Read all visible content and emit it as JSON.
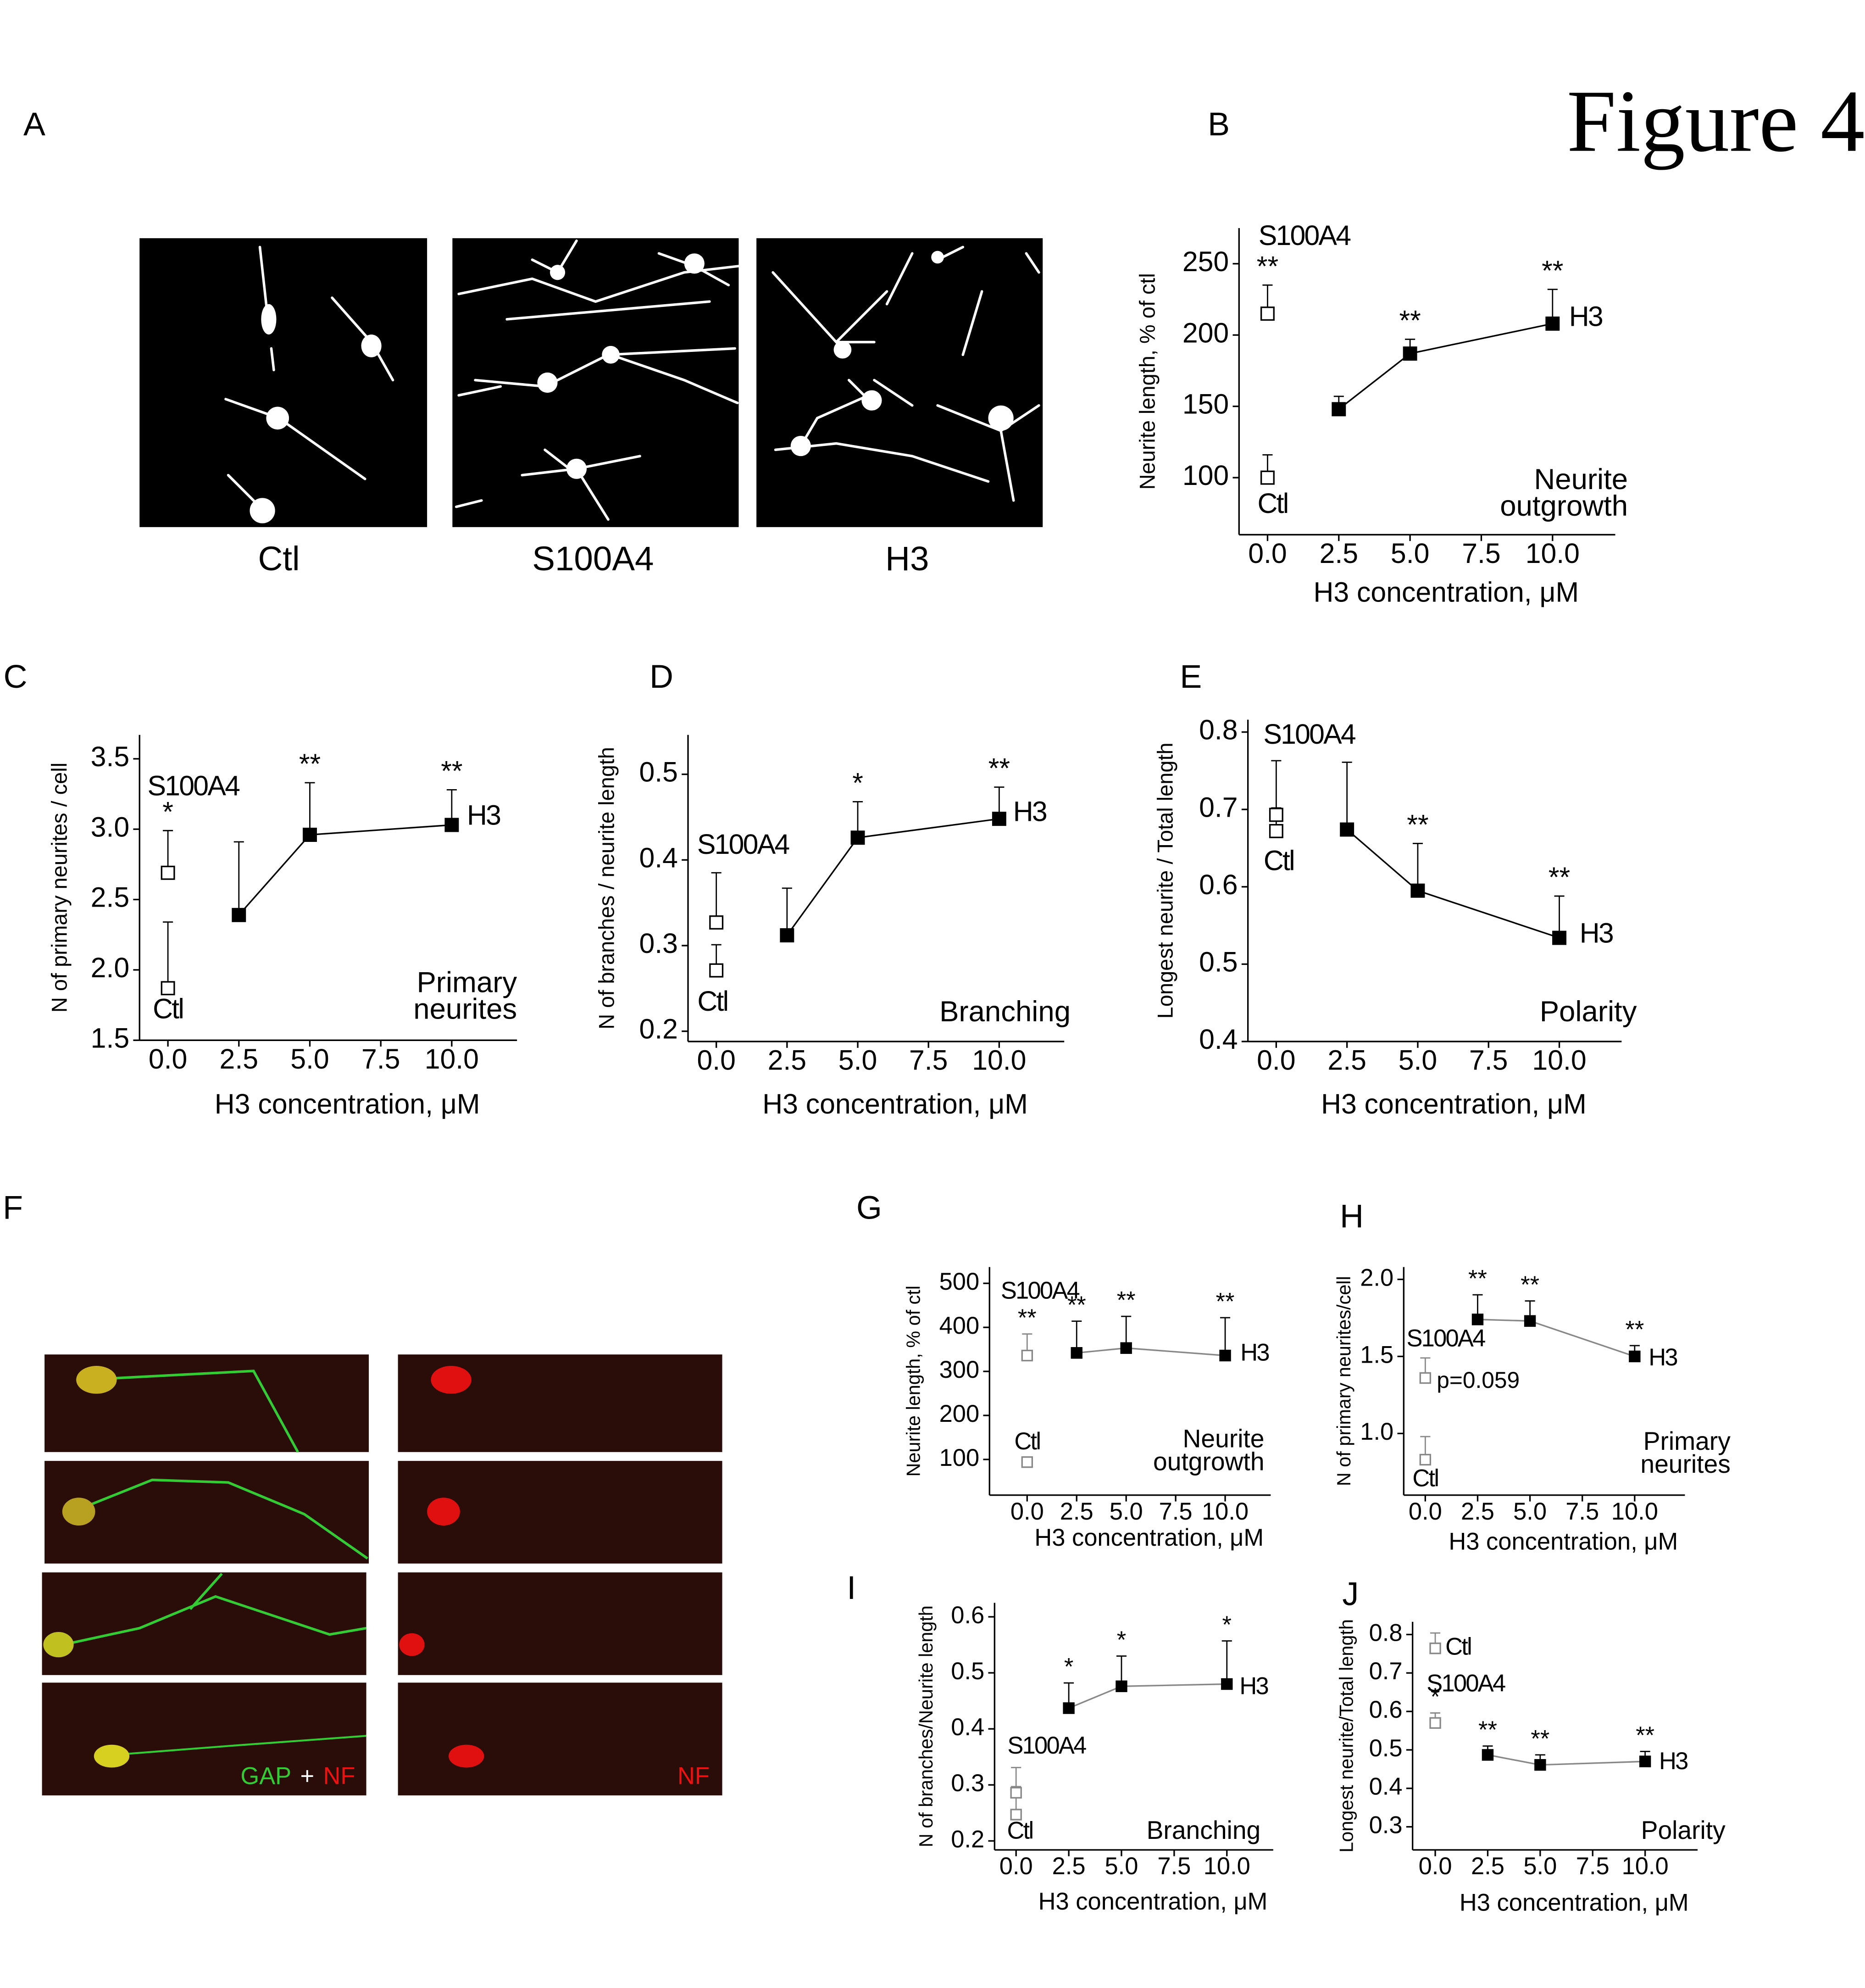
{
  "figure_title": "Figure 4",
  "panels": {
    "A": {
      "label": "A",
      "captions": [
        "Ctl",
        "S100A4",
        "H3"
      ]
    },
    "F": {
      "label": "F",
      "merge_label": [
        "GAP",
        "+",
        "NF"
      ],
      "single_label": "NF"
    }
  },
  "chart_data": [
    {
      "type": "line",
      "panel": "B",
      "ylabel": "Neurite length, % of ctl",
      "xlabel": "H3 concentration, μM",
      "annotation": [
        "Neurite",
        "outgrowth"
      ],
      "xlim": [
        -1,
        12.2
      ],
      "xticks": [
        {
          "value": 0,
          "label": "0.0"
        },
        2.5,
        {
          "value": 5,
          "label": "5.0"
        },
        7.5,
        {
          "value": 10,
          "label": "10.0"
        }
      ],
      "ylim": [
        60,
        275
      ],
      "yticks": [
        100,
        150,
        200,
        250
      ],
      "series": [
        {
          "name": "Ctl",
          "marker": "open",
          "color": "#000000",
          "x": [
            0
          ],
          "values": [
            100
          ],
          "errors": [
            16
          ],
          "significance": [
            null
          ]
        },
        {
          "name": "S100A4",
          "marker": "open",
          "color": "#000000",
          "x": [
            0
          ],
          "values": [
            215
          ],
          "errors": [
            20
          ],
          "significance": [
            "**"
          ]
        },
        {
          "name": "H3",
          "marker": "filled",
          "color": "#000000",
          "line_color": "#000000",
          "x": [
            2.5,
            5,
            10
          ],
          "values": [
            148,
            187,
            208
          ],
          "errors": [
            9,
            10,
            24
          ],
          "significance": [
            null,
            "**",
            "**"
          ]
        }
      ]
    },
    {
      "type": "line",
      "panel": "C",
      "ylabel": "N of primary neurites / cell",
      "xlabel": "H3 concentration, μM",
      "annotation": [
        "Primary",
        "neurites"
      ],
      "xlim": [
        -1,
        12.3
      ],
      "xticks": [
        {
          "value": 0,
          "label": "0.0"
        },
        2.5,
        {
          "value": 5,
          "label": "5.0"
        },
        7.5,
        {
          "value": 10,
          "label": "10.0"
        }
      ],
      "ylim": [
        1.5,
        3.67
      ],
      "yticks": [
        1.5,
        {
          "value": 2,
          "label": "2.0"
        },
        2.5,
        {
          "value": 3,
          "label": "3.0"
        },
        3.5
      ],
      "series": [
        {
          "name": "Ctl",
          "marker": "open",
          "color": "#000000",
          "x": [
            0
          ],
          "values": [
            1.87
          ],
          "errors": [
            0.47
          ],
          "significance": [
            null
          ]
        },
        {
          "name": "S100A4",
          "marker": "open",
          "color": "#000000",
          "x": [
            0
          ],
          "values": [
            2.69
          ],
          "errors": [
            0.3
          ],
          "significance": [
            "*"
          ]
        },
        {
          "name": "H3",
          "marker": "filled",
          "color": "#000000",
          "line_color": "#000000",
          "x": [
            2.5,
            5,
            10
          ],
          "values": [
            2.39,
            2.96,
            3.03
          ],
          "errors": [
            0.52,
            0.37,
            0.25
          ],
          "significance": [
            null,
            "**",
            "**"
          ]
        }
      ]
    },
    {
      "type": "line",
      "panel": "D",
      "ylabel": "N of branches / neurite length",
      "xlabel": "H3 concentration, μM",
      "annotation": [
        "Branching"
      ],
      "xlim": [
        -1,
        12.3
      ],
      "xticks": [
        {
          "value": 0,
          "label": "0.0"
        },
        2.5,
        {
          "value": 5,
          "label": "5.0"
        },
        7.5,
        {
          "value": 10,
          "label": "10.0"
        }
      ],
      "ylim": [
        0.188,
        0.546
      ],
      "yticks": [
        0.2,
        0.3,
        0.4,
        0.5
      ],
      "series": [
        {
          "name": "Ctl",
          "marker": "open",
          "color": "#000000",
          "x": [
            0
          ],
          "values": [
            0.271
          ],
          "errors": [
            0.03
          ],
          "significance": [
            null
          ]
        },
        {
          "name": "S100A4",
          "marker": "open",
          "color": "#000000",
          "x": [
            0
          ],
          "values": [
            0.327
          ],
          "errors": [
            0.058
          ],
          "significance": [
            null
          ]
        },
        {
          "name": "H3",
          "marker": "filled",
          "color": "#000000",
          "line_color": "#000000",
          "x": [
            2.5,
            5,
            10
          ],
          "values": [
            0.312,
            0.426,
            0.448
          ],
          "errors": [
            0.055,
            0.042,
            0.037
          ],
          "significance": [
            null,
            "*",
            "**"
          ]
        }
      ]
    },
    {
      "type": "line",
      "panel": "E",
      "ylabel": "Longest neurite / Total length",
      "xlabel": "H3 concentration, μM",
      "annotation": [
        "Polarity"
      ],
      "xlim": [
        -1,
        12.2
      ],
      "xticks": [
        {
          "value": 0,
          "label": "0.0"
        },
        2.5,
        {
          "value": 5,
          "label": "5.0"
        },
        7.5,
        {
          "value": 10,
          "label": "10.0"
        }
      ],
      "ylim": [
        0.4,
        0.816
      ],
      "yticks": [
        0.4,
        0.5,
        0.6,
        0.7,
        0.8
      ],
      "series": [
        {
          "name": "Ctl",
          "marker": "open",
          "color": "#000000",
          "x": [
            0
          ],
          "values": [
            0.672
          ],
          "errors": [
            0.03
          ],
          "significance": [
            null
          ]
        },
        {
          "name": "S100A4",
          "marker": "open",
          "color": "#000000",
          "x": [
            0
          ],
          "values": [
            0.693
          ],
          "errors": [
            0.07
          ],
          "significance": [
            null
          ]
        },
        {
          "name": "H3",
          "marker": "filled",
          "color": "#000000",
          "line_color": "#000000",
          "x": [
            2.5,
            5,
            10
          ],
          "values": [
            0.674,
            0.595,
            0.534
          ],
          "errors": [
            0.087,
            0.061,
            0.054
          ],
          "significance": [
            null,
            "**",
            "**"
          ]
        }
      ]
    },
    {
      "type": "line",
      "panel": "G",
      "ylabel": "Neurite length, % of ctl",
      "xlabel": "H3 concentration, μM",
      "annotation": [
        "Neurite",
        "outgrowth"
      ],
      "xlim": [
        -1.9,
        12.3
      ],
      "xticks": [
        {
          "value": 0,
          "label": "0.0"
        },
        2.5,
        {
          "value": 5,
          "label": "5.0"
        },
        7.5,
        {
          "value": 10,
          "label": "10.0"
        }
      ],
      "ylim": [
        19,
        537
      ],
      "yticks": [
        100,
        200,
        300,
        400,
        500
      ],
      "series": [
        {
          "name": "Ctl",
          "marker": "open",
          "color": "#888888",
          "x": [
            0
          ],
          "values": [
            94
          ],
          "errors": [
            5
          ],
          "significance": [
            null
          ]
        },
        {
          "name": "S100A4",
          "marker": "open",
          "color": "#888888",
          "x": [
            0
          ],
          "values": [
            336
          ],
          "errors": [
            49
          ],
          "significance": [
            "**"
          ]
        },
        {
          "name": "H3",
          "marker": "filled",
          "color": "#000000",
          "line_color": "#888888",
          "x": [
            2.5,
            5,
            10
          ],
          "values": [
            342,
            353,
            336
          ],
          "errors": [
            72,
            72,
            86
          ],
          "significance": [
            "**",
            "**",
            "**"
          ]
        }
      ]
    },
    {
      "type": "line",
      "panel": "H",
      "ylabel": "N of primary neurites/cell",
      "xlabel": "H3 concentration, μM",
      "annotation": [
        "Primary",
        "neurites"
      ],
      "note": "p=0.059",
      "xlim": [
        -1.03,
        12.4
      ],
      "xticks": [
        {
          "value": 0,
          "label": "0.0"
        },
        2.5,
        {
          "value": 5,
          "label": "5.0"
        },
        7.5,
        {
          "value": 10,
          "label": "10.0"
        }
      ],
      "ylim": [
        0.6,
        2.08
      ],
      "yticks": [
        {
          "value": 1,
          "label": "1.0"
        },
        1.5,
        {
          "value": 2,
          "label": "2.0"
        }
      ],
      "series": [
        {
          "name": "Ctl",
          "marker": "open",
          "color": "#888888",
          "x": [
            0
          ],
          "values": [
            0.83
          ],
          "errors": [
            0.15
          ],
          "significance": [
            null
          ]
        },
        {
          "name": "S100A4",
          "marker": "open",
          "color": "#888888",
          "x": [
            0
          ],
          "values": [
            1.36
          ],
          "errors": [
            0.13
          ],
          "significance": [
            null
          ]
        },
        {
          "name": "H3",
          "marker": "filled",
          "color": "#000000",
          "line_color": "#888888",
          "x": [
            2.5,
            5,
            10
          ],
          "values": [
            1.74,
            1.73,
            1.5
          ],
          "errors": [
            0.16,
            0.13,
            0.07
          ],
          "significance": [
            "**",
            "**",
            "**"
          ]
        }
      ]
    },
    {
      "type": "line",
      "panel": "I",
      "ylabel": "N of branches/Neurite length",
      "xlabel": "H3 concentration, μM",
      "annotation": [
        "Branching"
      ],
      "xlim": [
        -1.02,
        12.2
      ],
      "xticks": [
        {
          "value": 0,
          "label": "0.0"
        },
        2.5,
        {
          "value": 5,
          "label": "5.0"
        },
        7.5,
        {
          "value": 10,
          "label": "10.0"
        }
      ],
      "ylim": [
        0.184,
        0.625
      ],
      "yticks": [
        0.2,
        0.3,
        0.4,
        0.5,
        0.6
      ],
      "series": [
        {
          "name": "Ctl",
          "marker": "open",
          "color": "#888888",
          "x": [
            0
          ],
          "values": [
            0.247
          ],
          "errors": [
            0.05
          ],
          "significance": [
            null
          ]
        },
        {
          "name": "S100A4",
          "marker": "open",
          "color": "#888888",
          "x": [
            0
          ],
          "values": [
            0.286
          ],
          "errors": [
            0.045
          ],
          "significance": [
            null
          ]
        },
        {
          "name": "H3",
          "marker": "filled",
          "color": "#000000",
          "line_color": "#888888",
          "x": [
            2.5,
            5,
            10
          ],
          "values": [
            0.437,
            0.476,
            0.48
          ],
          "errors": [
            0.045,
            0.054,
            0.077
          ],
          "significance": [
            "*",
            "*",
            "*"
          ]
        }
      ]
    },
    {
      "type": "line",
      "panel": "J",
      "ylabel": "Longest neurite/Total length",
      "xlabel": "H3 concentration, μM",
      "annotation": [
        "Polarity"
      ],
      "xlim": [
        -1.08,
        12.5
      ],
      "xticks": [
        {
          "value": 0,
          "label": "0.0"
        },
        2.5,
        {
          "value": 5,
          "label": "5.0"
        },
        7.5,
        {
          "value": 10,
          "label": "10.0"
        }
      ],
      "ylim": [
        0.24,
        0.833
      ],
      "yticks": [
        0.3,
        0.4,
        0.5,
        0.6,
        0.7,
        0.8
      ],
      "series": [
        {
          "name": "Ctl",
          "marker": "open",
          "color": "#888888",
          "x": [
            0
          ],
          "values": [
            0.764
          ],
          "errors": [
            0.04
          ],
          "significance": [
            null
          ]
        },
        {
          "name": "S100A4",
          "marker": "open",
          "color": "#888888",
          "x": [
            0
          ],
          "values": [
            0.57
          ],
          "errors": [
            0.026
          ],
          "significance": [
            "*"
          ]
        },
        {
          "name": "H3",
          "marker": "filled",
          "color": "#000000",
          "line_color": "#888888",
          "x": [
            2.5,
            5,
            10
          ],
          "values": [
            0.487,
            0.461,
            0.47
          ],
          "errors": [
            0.023,
            0.026,
            0.026
          ],
          "significance": [
            "**",
            "**",
            "**"
          ]
        }
      ]
    }
  ]
}
